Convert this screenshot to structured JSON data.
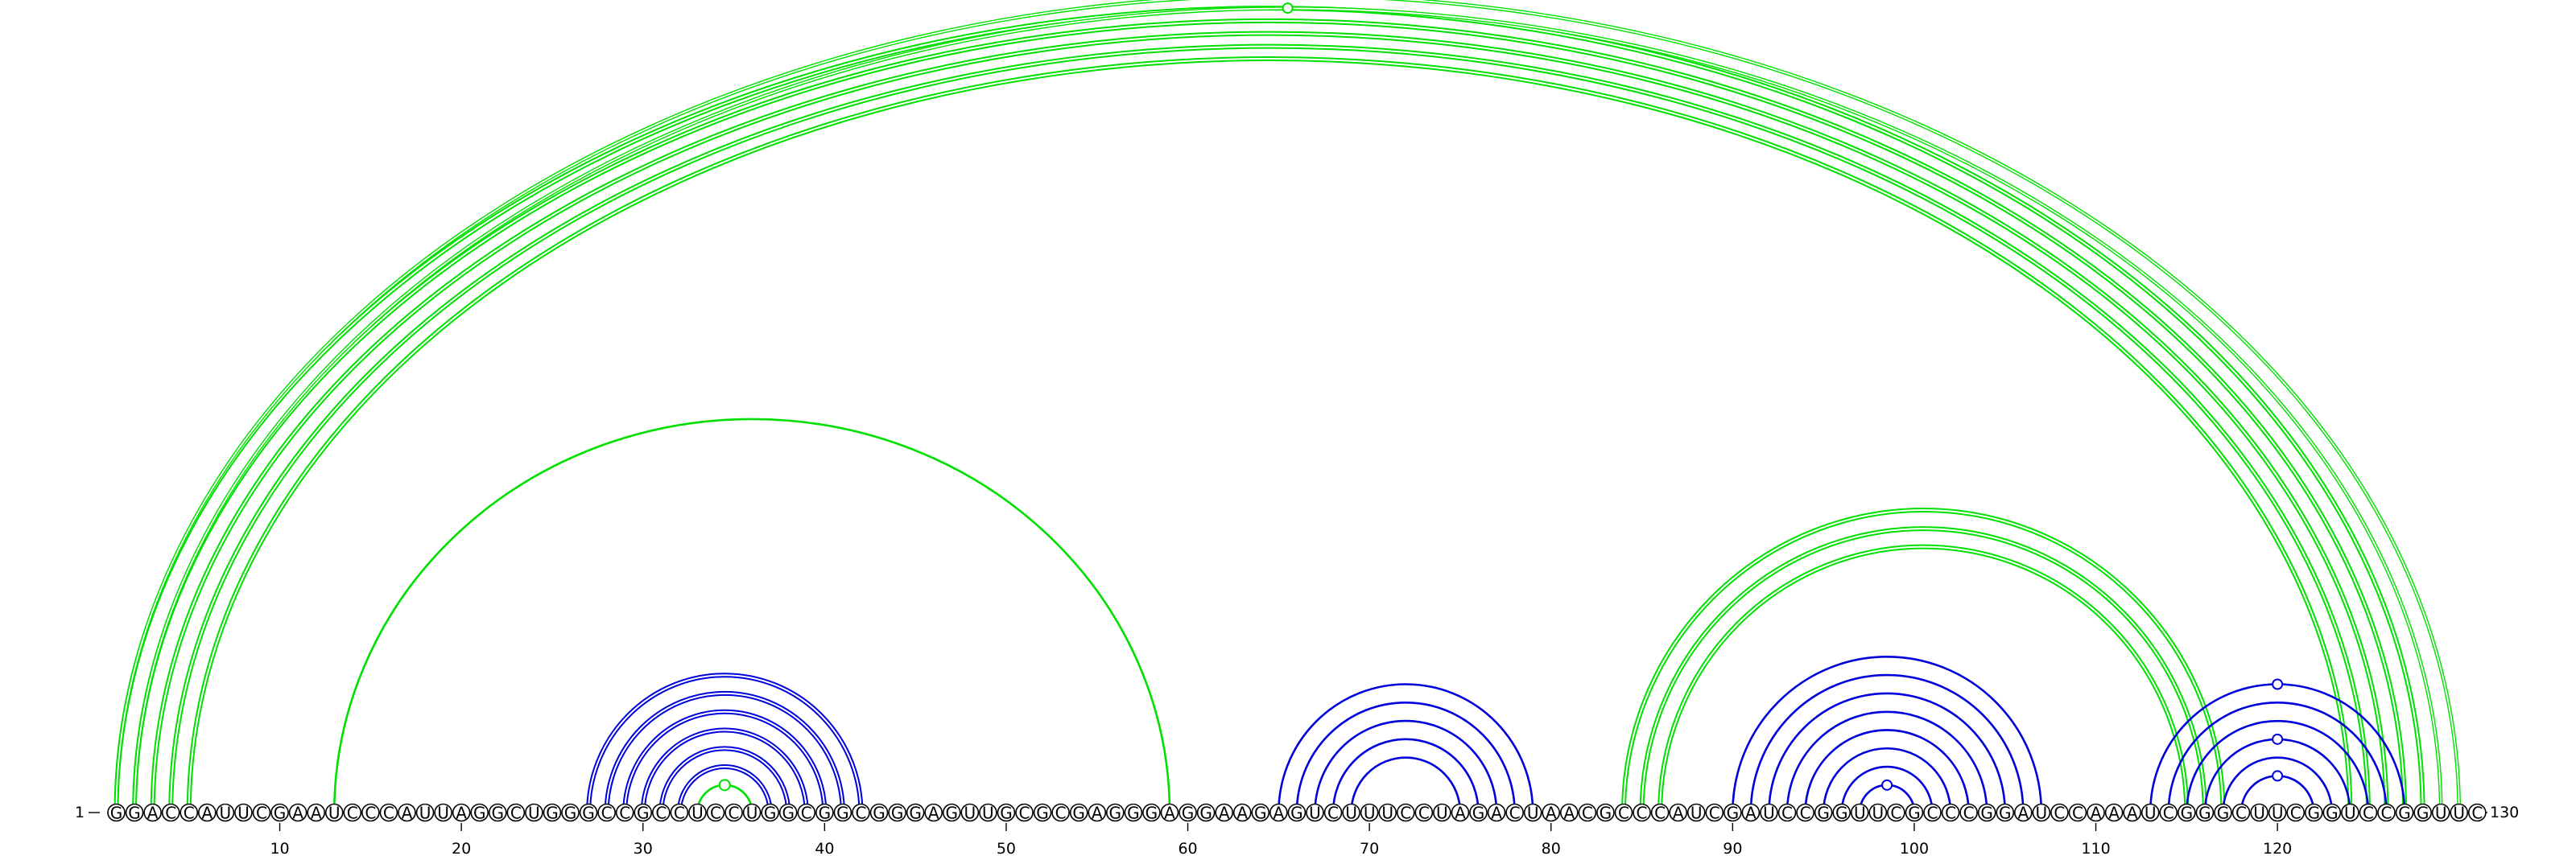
{
  "sequence": "GGACCAUUCGAAUCCCAUUAGGCUGGGCCGCCUCCUGGCGGCGGGAGUUGCGCGAGGGAGGAAGAGUCUUUCCUAGACUAACGCCCAUCGAUCCGGUUCGCCCGGAUCCAAAUCGGGCUUCGGUCCGGUUC",
  "labels": {
    "start_index": "1",
    "end_index": "130"
  },
  "ticks": [
    "10",
    "20",
    "30",
    "40",
    "50",
    "60",
    "70",
    "80",
    "90",
    "100",
    "110",
    "120"
  ],
  "colors": {
    "green": "#00e000",
    "blue": "#0000dd",
    "nucleotide_outline": "#000000"
  },
  "arc_groups": [
    {
      "color": "green",
      "style": "double",
      "pairs": [
        [
          1,
          128
        ],
        [
          2,
          127
        ],
        [
          3,
          126
        ],
        [
          4,
          125
        ],
        [
          5,
          124
        ]
      ]
    },
    {
      "color": "green",
      "style": "double-thin",
      "pairs": [
        [
          1,
          130
        ],
        [
          2,
          129
        ]
      ]
    },
    {
      "color": "green",
      "style": "single",
      "pairs": [
        [
          13,
          59
        ]
      ]
    },
    {
      "color": "green",
      "style": "double",
      "pairs": [
        [
          84,
          117
        ],
        [
          85,
          116
        ],
        [
          86,
          115
        ]
      ]
    },
    {
      "color": "green",
      "style": "single",
      "pairs": [
        [
          33,
          36
        ]
      ]
    },
    {
      "color": "blue",
      "style": "double",
      "pairs": [
        [
          27,
          42
        ],
        [
          28,
          41
        ],
        [
          29,
          40
        ],
        [
          30,
          39
        ],
        [
          31,
          38
        ],
        [
          32,
          37
        ]
      ]
    },
    {
      "color": "blue",
      "style": "single",
      "pairs": [
        [
          65,
          79
        ],
        [
          66,
          78
        ],
        [
          67,
          77
        ],
        [
          68,
          76
        ],
        [
          69,
          75
        ]
      ]
    },
    {
      "color": "blue",
      "style": "single",
      "pairs": [
        [
          90,
          107
        ],
        [
          91,
          106
        ],
        [
          92,
          105
        ],
        [
          93,
          104
        ],
        [
          94,
          103
        ],
        [
          95,
          102
        ],
        [
          96,
          101
        ],
        [
          97,
          100
        ]
      ]
    },
    {
      "color": "blue",
      "style": "single",
      "pairs": [
        [
          113,
          127
        ],
        [
          114,
          126
        ],
        [
          115,
          125
        ],
        [
          116,
          124
        ],
        [
          117,
          123
        ],
        [
          118,
          122
        ]
      ]
    }
  ],
  "markers": [
    {
      "arc": [
        2,
        129
      ],
      "color": "green",
      "filled": false
    },
    {
      "arc": [
        33,
        36
      ],
      "color": "green",
      "filled": true
    },
    {
      "arc": [
        97,
        100
      ],
      "color": "blue",
      "filled": false
    },
    {
      "arc": [
        113,
        127
      ],
      "color": "blue",
      "filled": false
    },
    {
      "arc": [
        116,
        124
      ],
      "color": "blue",
      "filled": false
    },
    {
      "arc": [
        118,
        122
      ],
      "color": "blue",
      "filled": false
    }
  ]
}
